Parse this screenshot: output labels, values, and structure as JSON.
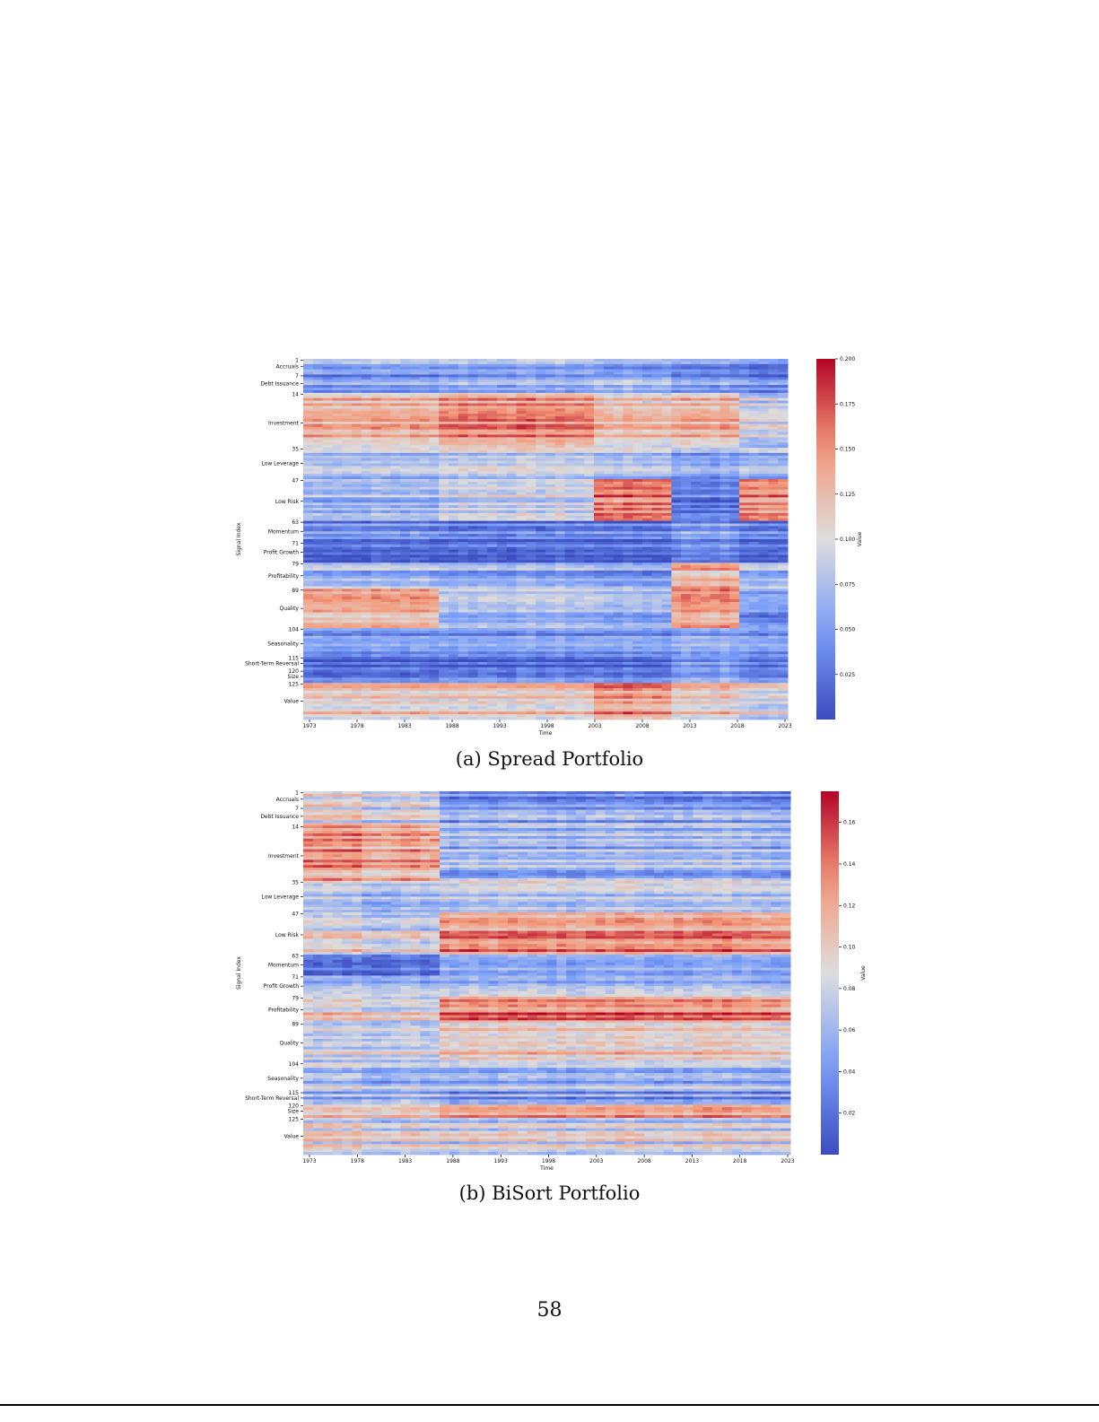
{
  "page_number": "58",
  "chart_data": [
    {
      "type": "heatmap",
      "caption": "(a) Spread Portfolio",
      "xlabel": "Time",
      "ylabel": "Signal Index",
      "colorbar_label": "Value",
      "colormap": "coolwarm",
      "vlim": [
        0.0,
        0.2
      ],
      "colorbar_ticks": [
        "0.025",
        "0.050",
        "0.075",
        "0.100",
        "0.125",
        "0.150",
        "0.175",
        "0.200"
      ],
      "x_ticks": [
        "1973",
        "1978",
        "1983",
        "1988",
        "1993",
        "1998",
        "2003",
        "2008",
        "2013",
        "2018",
        "2023"
      ],
      "y_ticks": [
        {
          "row": 1,
          "label": "1"
        },
        {
          "row": 3.5,
          "label": "Accruals"
        },
        {
          "row": 7,
          "label": "7"
        },
        {
          "row": 10,
          "label": "Debt Issuance"
        },
        {
          "row": 14,
          "label": "14"
        },
        {
          "row": 25,
          "label": "Investment"
        },
        {
          "row": 35,
          "label": "35"
        },
        {
          "row": 40.5,
          "label": "Low Leverage"
        },
        {
          "row": 47,
          "label": "47"
        },
        {
          "row": 55,
          "label": "Low Risk"
        },
        {
          "row": 63,
          "label": "63"
        },
        {
          "row": 66.5,
          "label": "Momentum"
        },
        {
          "row": 71,
          "label": "71"
        },
        {
          "row": 74.5,
          "label": "Profit Growth"
        },
        {
          "row": 79,
          "label": "79"
        },
        {
          "row": 83.5,
          "label": "Profitability"
        },
        {
          "row": 89,
          "label": "89"
        },
        {
          "row": 96,
          "label": "Quality"
        },
        {
          "row": 104,
          "label": "104"
        },
        {
          "row": 109.5,
          "label": "Seasonality"
        },
        {
          "row": 115,
          "label": "115"
        },
        {
          "row": 117,
          "label": "Short-Term Reversal"
        },
        {
          "row": 120,
          "label": "120"
        },
        {
          "row": 122,
          "label": "Size"
        },
        {
          "row": 125,
          "label": "125"
        },
        {
          "row": 131.5,
          "label": "Value"
        }
      ],
      "n_rows": 138,
      "x_range": [
        1973,
        2023
      ],
      "eras": [
        1973,
        1987,
        2003,
        2011,
        2018,
        2023
      ],
      "groups": [
        {
          "name": "Accruals",
          "rows": [
            1,
            6
          ],
          "era_means": [
            0.07,
            0.07,
            0.06,
            0.05,
            0.04
          ]
        },
        {
          "name": "Debt Issuance",
          "rows": [
            7,
            13
          ],
          "era_means": [
            0.05,
            0.06,
            0.07,
            0.05,
            0.04
          ]
        },
        {
          "name": "Investment",
          "rows": [
            14,
            34
          ],
          "era_means": [
            0.13,
            0.15,
            0.12,
            0.13,
            0.09
          ]
        },
        {
          "name": "Low Leverage",
          "rows": [
            35,
            46
          ],
          "era_means": [
            0.08,
            0.09,
            0.08,
            0.06,
            0.07
          ]
        },
        {
          "name": "Low Risk",
          "rows": [
            47,
            62
          ],
          "era_means": [
            0.07,
            0.09,
            0.16,
            0.03,
            0.15
          ]
        },
        {
          "name": "Momentum",
          "rows": [
            63,
            70
          ],
          "era_means": [
            0.04,
            0.03,
            0.03,
            0.05,
            0.03
          ]
        },
        {
          "name": "Profit Growth",
          "rows": [
            71,
            78
          ],
          "era_means": [
            0.03,
            0.03,
            0.03,
            0.05,
            0.03
          ]
        },
        {
          "name": "Profitability",
          "rows": [
            79,
            88
          ],
          "era_means": [
            0.07,
            0.06,
            0.05,
            0.13,
            0.07
          ]
        },
        {
          "name": "Quality",
          "rows": [
            89,
            103
          ],
          "era_means": [
            0.13,
            0.07,
            0.06,
            0.14,
            0.04
          ]
        },
        {
          "name": "Seasonality",
          "rows": [
            104,
            114
          ],
          "era_means": [
            0.05,
            0.05,
            0.05,
            0.06,
            0.05
          ]
        },
        {
          "name": "Short-Term Reversal",
          "rows": [
            115,
            119
          ],
          "era_means": [
            0.03,
            0.03,
            0.03,
            0.06,
            0.04
          ]
        },
        {
          "name": "Size",
          "rows": [
            120,
            124
          ],
          "era_means": [
            0.04,
            0.05,
            0.05,
            0.07,
            0.05
          ]
        },
        {
          "name": "Value",
          "rows": [
            125,
            138
          ],
          "era_means": [
            0.12,
            0.12,
            0.15,
            0.12,
            0.1
          ]
        }
      ]
    },
    {
      "type": "heatmap",
      "caption": "(b) BiSort Portfolio",
      "xlabel": "Time",
      "ylabel": "Signal Index",
      "colorbar_label": "Value",
      "colormap": "coolwarm",
      "vlim": [
        0.0,
        0.175
      ],
      "colorbar_ticks": [
        "0.02",
        "0.04",
        "0.06",
        "0.08",
        "0.10",
        "0.12",
        "0.14",
        "0.16"
      ],
      "x_ticks": [
        "1973",
        "1978",
        "1983",
        "1988",
        "1993",
        "1998",
        "2003",
        "2008",
        "2013",
        "2018",
        "2023"
      ],
      "y_ticks": [
        {
          "row": 1,
          "label": "1"
        },
        {
          "row": 3.5,
          "label": "Accruals"
        },
        {
          "row": 7,
          "label": "7"
        },
        {
          "row": 10,
          "label": "Debt Issuance"
        },
        {
          "row": 14,
          "label": "14"
        },
        {
          "row": 25,
          "label": "Investment"
        },
        {
          "row": 35,
          "label": "35"
        },
        {
          "row": 40.5,
          "label": "Low Leverage"
        },
        {
          "row": 47,
          "label": "47"
        },
        {
          "row": 55,
          "label": "Low Risk"
        },
        {
          "row": 63,
          "label": "63"
        },
        {
          "row": 66.5,
          "label": "Momentum"
        },
        {
          "row": 71,
          "label": "71"
        },
        {
          "row": 74.5,
          "label": "Profit Growth"
        },
        {
          "row": 79,
          "label": "79"
        },
        {
          "row": 83.5,
          "label": "Profitability"
        },
        {
          "row": 89,
          "label": "89"
        },
        {
          "row": 96,
          "label": "Quality"
        },
        {
          "row": 104,
          "label": "104"
        },
        {
          "row": 109.5,
          "label": "Seasonality"
        },
        {
          "row": 115,
          "label": "115"
        },
        {
          "row": 117,
          "label": "Short-Term Reversal"
        },
        {
          "row": 120,
          "label": "120"
        },
        {
          "row": 122,
          "label": "Size"
        },
        {
          "row": 125,
          "label": "125"
        },
        {
          "row": 131.5,
          "label": "Value"
        }
      ],
      "n_rows": 138,
      "x_range": [
        1973,
        2023
      ],
      "eras": [
        1973,
        1979,
        1987,
        2023
      ],
      "groups": [
        {
          "name": "Accruals",
          "rows": [
            1,
            6
          ],
          "era_means": [
            0.1,
            0.09,
            0.04
          ]
        },
        {
          "name": "Debt Issuance",
          "rows": [
            7,
            13
          ],
          "era_means": [
            0.09,
            0.08,
            0.05
          ]
        },
        {
          "name": "Investment",
          "rows": [
            14,
            34
          ],
          "era_means": [
            0.13,
            0.12,
            0.06
          ]
        },
        {
          "name": "Low Leverage",
          "rows": [
            35,
            46
          ],
          "era_means": [
            0.08,
            0.07,
            0.08
          ]
        },
        {
          "name": "Low Risk",
          "rows": [
            47,
            62
          ],
          "era_means": [
            0.09,
            0.08,
            0.13
          ]
        },
        {
          "name": "Momentum",
          "rows": [
            63,
            70
          ],
          "era_means": [
            0.04,
            0.04,
            0.07
          ]
        },
        {
          "name": "Profit Growth",
          "rows": [
            71,
            78
          ],
          "era_means": [
            0.06,
            0.06,
            0.06
          ]
        },
        {
          "name": "Profitability",
          "rows": [
            79,
            88
          ],
          "era_means": [
            0.1,
            0.09,
            0.14
          ]
        },
        {
          "name": "Quality",
          "rows": [
            89,
            103
          ],
          "era_means": [
            0.08,
            0.08,
            0.1
          ]
        },
        {
          "name": "Seasonality",
          "rows": [
            104,
            114
          ],
          "era_means": [
            0.07,
            0.06,
            0.06
          ]
        },
        {
          "name": "Short-Term Reversal",
          "rows": [
            115,
            119
          ],
          "era_means": [
            0.05,
            0.06,
            0.04
          ]
        },
        {
          "name": "Size",
          "rows": [
            120,
            124
          ],
          "era_means": [
            0.11,
            0.11,
            0.13
          ]
        },
        {
          "name": "Value",
          "rows": [
            125,
            138
          ],
          "era_means": [
            0.09,
            0.08,
            0.08
          ]
        }
      ]
    }
  ]
}
